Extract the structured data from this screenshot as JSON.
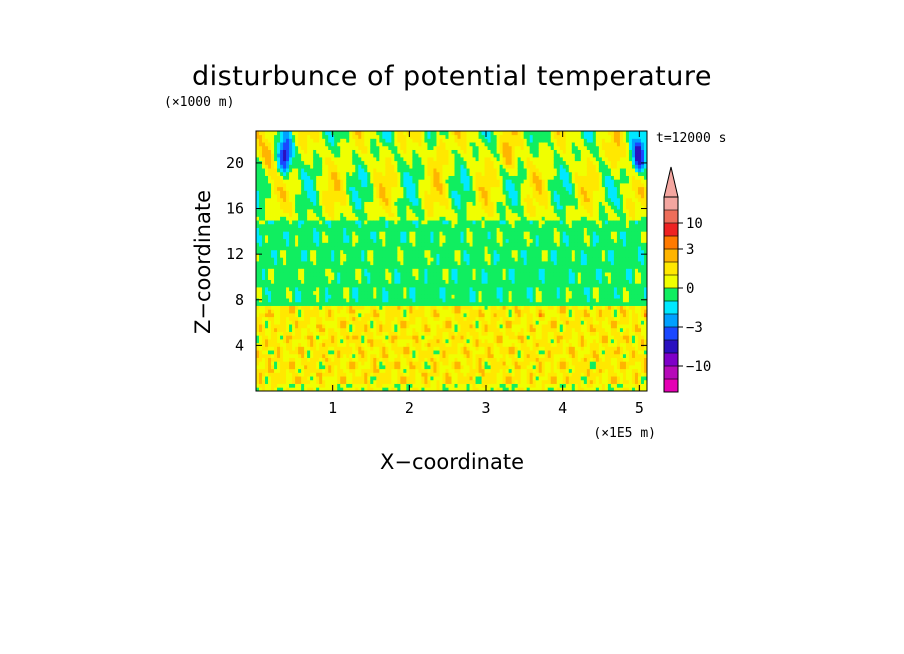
{
  "chart_data": {
    "type": "heatmap",
    "title": "disturbunce of potential temperature",
    "time_label": "t=12000 s",
    "xlabel": "X−coordinate",
    "ylabel": "Z−coordinate",
    "x_unit_label": "(×1E5 m)",
    "y_unit_label": "(×1000 m)",
    "xlim": [
      0,
      5.1
    ],
    "ylim": [
      0,
      22.8
    ],
    "x_ticks": [
      1,
      2,
      3,
      4,
      5
    ],
    "x_tick_labels": [
      "1",
      "2",
      "3",
      "4",
      "5"
    ],
    "y_ticks": [
      4,
      8,
      12,
      16,
      20
    ],
    "y_tick_labels": [
      "4",
      "8",
      "12",
      "16",
      "20"
    ],
    "colorbar": {
      "levels": [
        -20,
        -15,
        -10,
        -6,
        -4,
        -3,
        -2,
        -1,
        0,
        1,
        2,
        3,
        6,
        10,
        15
      ],
      "colors": [
        "#e500b4",
        "#b60ab9",
        "#7f00c8",
        "#2a10c0",
        "#1a48ff",
        "#00a0ff",
        "#00e8ff",
        "#10ee60",
        "#f0ff00",
        "#ffe800",
        "#ffb400",
        "#ff7a00",
        "#ee2222",
        "#ee6e5a",
        "#f4a6a0"
      ],
      "tick_labels": [
        "10",
        "3",
        "0",
        "−3",
        "−10"
      ],
      "tick_values": [
        10,
        3,
        0,
        -3,
        -10
      ],
      "extend": "max"
    },
    "field_regions": [
      {
        "description": "near-surface band",
        "z_range": [
          0,
          0.6
        ],
        "value": 0.5
      },
      {
        "description": "lower troposphere, warm yellow/orange patches",
        "z_range": [
          0.6,
          7.5
        ],
        "value": 1.2
      },
      {
        "description": "middle layer, mostly green",
        "z_range": [
          7.5,
          15
        ],
        "value": -0.5
      },
      {
        "description": "upper layer, alternating yellow/green/cyan cells",
        "z_range": [
          15,
          22.8
        ],
        "value": 0.3
      }
    ],
    "extrema": [
      {
        "x": 0.38,
        "z": 20.5,
        "value": -5
      },
      {
        "x": 5.0,
        "z": 20.5,
        "value": -5
      },
      {
        "x": 0.15,
        "z": 20.5,
        "value": 2.5
      },
      {
        "x": 3.3,
        "z": 20.5,
        "value": 2.5
      },
      {
        "x": 4.7,
        "z": 20.5,
        "value": 2.2
      },
      {
        "x": 2.4,
        "z": 21.0,
        "value": 1.8
      }
    ]
  }
}
